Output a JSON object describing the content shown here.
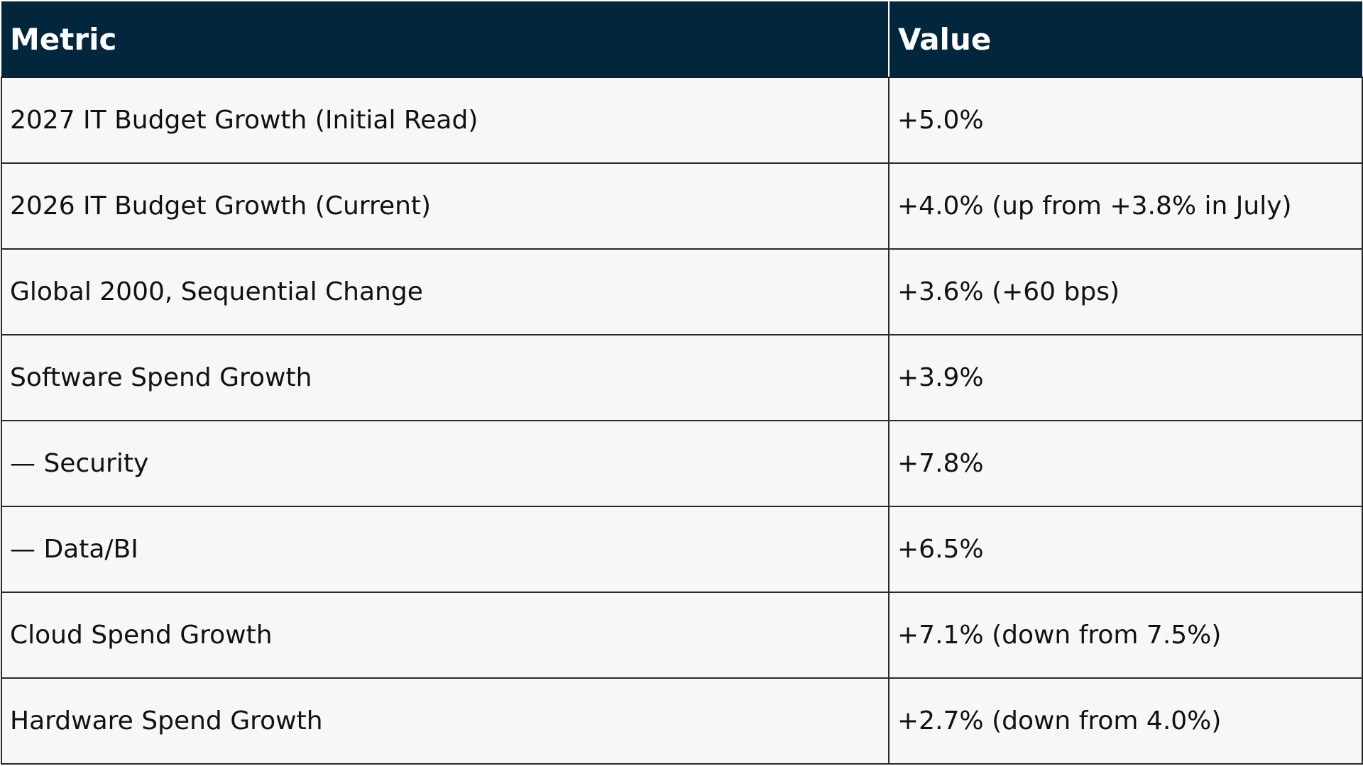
{
  "table": {
    "headers": [
      "Metric",
      "Value"
    ],
    "rows": [
      {
        "metric": "2027 IT Budget Growth (Initial Read)",
        "value": "+5.0%"
      },
      {
        "metric": "2026 IT Budget Growth (Current)",
        "value": "+4.0% (up from +3.8% in July)"
      },
      {
        "metric": "Global 2000, Sequential Change",
        "value": "+3.6% (+60 bps)"
      },
      {
        "metric": "Software Spend Growth",
        "value": "+3.9%"
      },
      {
        "metric": "— Security",
        "value": "+7.8%"
      },
      {
        "metric": "— Data/BI",
        "value": "+6.5%"
      },
      {
        "metric": "Cloud Spend Growth",
        "value": "+7.1% (down from 7.5%)"
      },
      {
        "metric": "Hardware Spend Growth",
        "value": "+2.7% (down from 4.0%)"
      }
    ]
  },
  "colors": {
    "header_bg": "#02263c",
    "header_text": "#ffffff",
    "cell_bg": "#f7f7f7",
    "border": "#2a2a2a"
  }
}
